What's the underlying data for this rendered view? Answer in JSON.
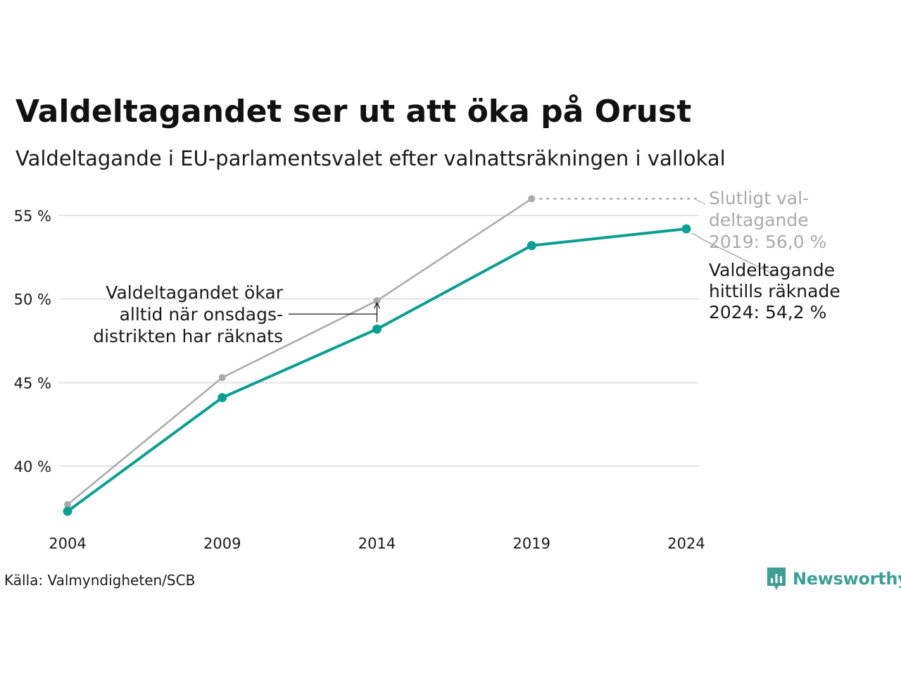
{
  "title": "Valdeltagandet ser ut att öka på Orust",
  "subtitle": "Valdeltagande i EU-parlamentsvalet efter valnattsräkningen i vallokal",
  "source": "Källa: Valmyndigheten/SCB",
  "logo": {
    "text": "Newsworthy",
    "icon": "newsworthy-logo-icon",
    "color": "#3f9e96"
  },
  "chart_data": {
    "type": "line",
    "x": [
      2004,
      2009,
      2014,
      2019,
      2024
    ],
    "x_tick_labels": [
      "2004",
      "2009",
      "2014",
      "2019",
      "2024"
    ],
    "ylim": [
      37,
      57
    ],
    "y_ticks": [
      40,
      45,
      50,
      55
    ],
    "y_tick_labels": [
      "40 %",
      "45 %",
      "50 %",
      "55 %"
    ],
    "grid": true,
    "series": [
      {
        "key": "final",
        "color": "#aaaaaa",
        "values": [
          37.7,
          45.3,
          49.9,
          56.0,
          null
        ]
      },
      {
        "key": "counted",
        "color": "#0b9e92",
        "values": [
          37.3,
          44.1,
          48.2,
          53.2,
          54.2
        ]
      }
    ],
    "annotations": {
      "final": [
        "Slutligt val-",
        "deltagande",
        "2019: 56,0 %"
      ],
      "counted": [
        "Valdeltagande",
        "hittills räknade",
        "2024: 54,2 %"
      ],
      "note": [
        "Valdeltagandet ökar",
        "alltid när onsdags-",
        "distrikten har räknats"
      ]
    }
  }
}
